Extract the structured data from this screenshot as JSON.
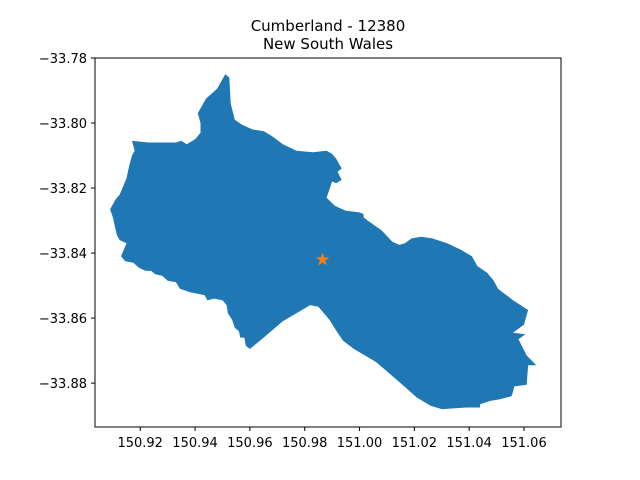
{
  "map": {
    "title_line1": "Cumberland - 12380",
    "title_line2": "New South Wales",
    "region_color": "#1f77b4",
    "marker_color": "#ff7f0e",
    "marker_icon": "star-icon",
    "marker_lonlat": [
      150.9865,
      -33.842
    ],
    "xlim": [
      150.9035,
      151.0735
    ],
    "ylim": [
      -33.8935,
      -33.78
    ],
    "x_ticks": [
      150.92,
      150.94,
      150.96,
      150.98,
      151.0,
      151.02,
      151.04,
      151.06
    ],
    "x_tick_labels": [
      "150.92",
      "150.94",
      "150.96",
      "150.98",
      "151.00",
      "151.02",
      "151.04",
      "151.06"
    ],
    "y_ticks": [
      -33.78,
      -33.8,
      -33.82,
      -33.84,
      -33.86,
      -33.88
    ],
    "y_tick_labels": [
      "−33.78",
      "−33.80",
      "−33.82",
      "−33.84",
      "−33.86",
      "−33.88"
    ],
    "boundary": [
      [
        150.951,
        -33.785
      ],
      [
        150.9525,
        -33.786
      ],
      [
        150.953,
        -33.794
      ],
      [
        150.9545,
        -33.799
      ],
      [
        150.957,
        -33.8005
      ],
      [
        150.961,
        -33.802
      ],
      [
        150.965,
        -33.8025
      ],
      [
        150.968,
        -33.804
      ],
      [
        150.972,
        -33.8065
      ],
      [
        150.977,
        -33.8085
      ],
      [
        150.983,
        -33.809
      ],
      [
        150.988,
        -33.8085
      ],
      [
        150.99,
        -33.8095
      ],
      [
        150.9915,
        -33.811
      ],
      [
        150.9935,
        -33.814
      ],
      [
        150.992,
        -33.815
      ],
      [
        150.9935,
        -33.8175
      ],
      [
        150.9915,
        -33.8185
      ],
      [
        150.99,
        -33.818
      ],
      [
        150.988,
        -33.823
      ],
      [
        150.991,
        -33.8255
      ],
      [
        150.995,
        -33.827
      ],
      [
        151.0,
        -33.8275
      ],
      [
        151.0015,
        -33.828
      ],
      [
        151.0015,
        -33.829
      ],
      [
        151.003,
        -33.83
      ],
      [
        151.008,
        -33.833
      ],
      [
        151.012,
        -33.8365
      ],
      [
        151.0145,
        -33.8375
      ],
      [
        151.0165,
        -33.837
      ],
      [
        151.019,
        -33.8355
      ],
      [
        151.0225,
        -33.835
      ],
      [
        151.0265,
        -33.8355
      ],
      [
        151.032,
        -33.837
      ],
      [
        151.037,
        -33.839
      ],
      [
        151.041,
        -33.841
      ],
      [
        151.043,
        -33.844
      ],
      [
        151.0465,
        -33.846
      ],
      [
        151.049,
        -33.8485
      ],
      [
        151.0505,
        -33.851
      ],
      [
        151.056,
        -33.8545
      ],
      [
        151.0615,
        -33.8575
      ],
      [
        151.06,
        -33.862
      ],
      [
        151.056,
        -33.8645
      ],
      [
        151.0605,
        -33.865
      ],
      [
        151.058,
        -33.8665
      ],
      [
        151.061,
        -33.8715
      ],
      [
        151.0645,
        -33.8745
      ],
      [
        151.0615,
        -33.8745
      ],
      [
        151.061,
        -33.8805
      ],
      [
        151.0565,
        -33.881
      ],
      [
        151.0555,
        -33.884
      ],
      [
        151.051,
        -33.885
      ],
      [
        151.0475,
        -33.8855
      ],
      [
        151.044,
        -33.8865
      ],
      [
        151.044,
        -33.8875
      ],
      [
        151.039,
        -33.8875
      ],
      [
        151.03,
        -33.888
      ],
      [
        151.026,
        -33.887
      ],
      [
        151.021,
        -33.8845
      ],
      [
        151.015,
        -33.88
      ],
      [
        151.006,
        -33.8735
      ],
      [
        150.998,
        -33.8695
      ],
      [
        150.994,
        -33.867
      ],
      [
        150.992,
        -33.8645
      ],
      [
        150.989,
        -33.8605
      ],
      [
        150.985,
        -33.8565
      ],
      [
        150.982,
        -33.856
      ],
      [
        150.978,
        -33.858
      ],
      [
        150.972,
        -33.861
      ],
      [
        150.965,
        -33.866
      ],
      [
        150.96,
        -33.8695
      ],
      [
        150.9585,
        -33.8685
      ],
      [
        150.958,
        -33.866
      ],
      [
        150.9565,
        -33.866
      ],
      [
        150.956,
        -33.864
      ],
      [
        150.9545,
        -33.863
      ],
      [
        150.9535,
        -33.8605
      ],
      [
        150.952,
        -33.8585
      ],
      [
        150.9515,
        -33.856
      ],
      [
        150.95,
        -33.8545
      ],
      [
        150.947,
        -33.854
      ],
      [
        150.9445,
        -33.8545
      ],
      [
        150.9435,
        -33.853
      ],
      [
        150.941,
        -33.8525
      ],
      [
        150.938,
        -33.852
      ],
      [
        150.9345,
        -33.851
      ],
      [
        150.933,
        -33.849
      ],
      [
        150.93,
        -33.8485
      ],
      [
        150.928,
        -33.847
      ],
      [
        150.9255,
        -33.8465
      ],
      [
        150.924,
        -33.8455
      ],
      [
        150.922,
        -33.8455
      ],
      [
        150.9195,
        -33.8445
      ],
      [
        150.9175,
        -33.843
      ],
      [
        150.9145,
        -33.8425
      ],
      [
        150.913,
        -33.841
      ],
      [
        150.915,
        -33.837
      ],
      [
        150.9125,
        -33.836
      ],
      [
        150.9115,
        -33.8345
      ],
      [
        150.91,
        -33.829
      ],
      [
        150.909,
        -33.8265
      ],
      [
        150.911,
        -33.8235
      ],
      [
        150.9125,
        -33.822
      ],
      [
        150.914,
        -33.819
      ],
      [
        150.915,
        -33.817
      ],
      [
        150.916,
        -33.813
      ],
      [
        150.917,
        -33.81
      ],
      [
        150.918,
        -33.8085
      ],
      [
        150.917,
        -33.8055
      ],
      [
        150.923,
        -33.806
      ],
      [
        150.929,
        -33.806
      ],
      [
        150.933,
        -33.806
      ],
      [
        150.935,
        -33.8055
      ],
      [
        150.937,
        -33.8065
      ],
      [
        150.94,
        -33.805
      ],
      [
        150.942,
        -33.803
      ],
      [
        150.942,
        -33.8
      ],
      [
        150.941,
        -33.797
      ],
      [
        150.944,
        -33.7925
      ],
      [
        150.948,
        -33.7895
      ],
      [
        150.951,
        -33.785
      ]
    ]
  }
}
